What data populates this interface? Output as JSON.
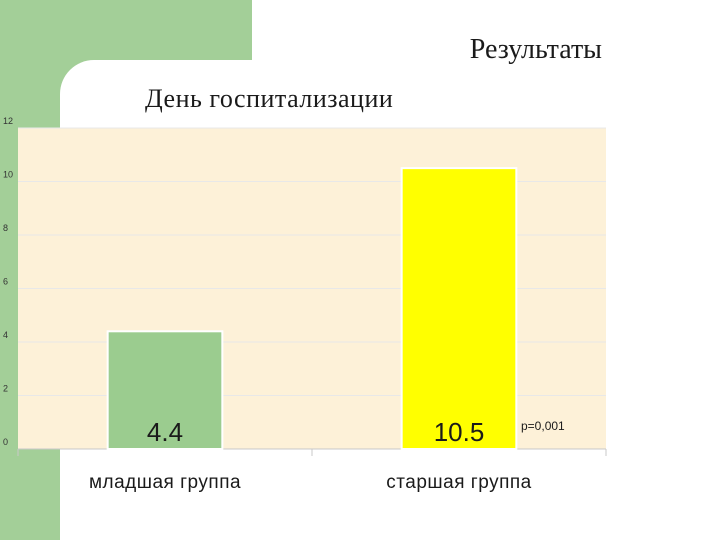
{
  "slide": {
    "title": "Результаты"
  },
  "chart_data": {
    "type": "bar",
    "title": "День госпитализации",
    "xlabel": "",
    "ylabel": "",
    "categories": [
      "младшая группа",
      "старшая группа"
    ],
    "values": [
      4.4,
      10.5
    ],
    "data_labels": [
      "4.4",
      "10.5"
    ],
    "ylim": [
      0,
      12
    ],
    "yticks": [
      0,
      2,
      4,
      6,
      8,
      10,
      12
    ],
    "grid": true,
    "legend": "none",
    "annotation": "p=0,001",
    "colors": {
      "bars": [
        "#9bcc8f",
        "#ffff00"
      ],
      "plot_background": "#fdf1d8",
      "slide_band": "#a3cf98"
    }
  }
}
